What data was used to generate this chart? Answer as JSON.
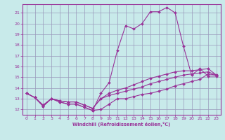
{
  "background_color": "#c8eaea",
  "line_color": "#993399",
  "grid_color": "#9999bb",
  "xlabel": "Windchill (Refroidissement éolien,°C)",
  "xlabel_color": "#993399",
  "xlim": [
    -0.5,
    23.5
  ],
  "ylim": [
    11.5,
    21.8
  ],
  "yticks": [
    12,
    13,
    14,
    15,
    16,
    17,
    18,
    19,
    20,
    21
  ],
  "xticks": [
    0,
    1,
    2,
    3,
    4,
    5,
    6,
    7,
    8,
    9,
    10,
    11,
    12,
    13,
    14,
    15,
    16,
    17,
    18,
    19,
    20,
    21,
    22,
    23
  ],
  "line1_y": [
    13.5,
    13.1,
    12.3,
    13.0,
    12.7,
    12.5,
    12.5,
    12.2,
    11.9,
    12.0,
    12.5,
    13.0,
    13.0,
    13.2,
    13.4,
    13.5,
    13.7,
    13.9,
    14.2,
    14.4,
    14.6,
    14.8,
    15.3,
    15.2
  ],
  "line2_y": [
    13.5,
    13.1,
    12.3,
    13.0,
    12.7,
    12.5,
    12.5,
    12.2,
    11.9,
    13.5,
    14.5,
    17.5,
    19.8,
    19.5,
    20.0,
    21.1,
    21.1,
    21.5,
    21.0,
    17.9,
    15.2,
    15.8,
    15.1,
    15.1
  ],
  "line3_y": [
    13.5,
    13.1,
    12.4,
    13.0,
    12.8,
    12.7,
    12.7,
    12.4,
    12.1,
    13.0,
    13.3,
    13.5,
    13.7,
    13.9,
    14.1,
    14.4,
    14.6,
    14.8,
    15.0,
    15.2,
    15.3,
    15.4,
    15.5,
    15.2
  ],
  "line4_y": [
    13.5,
    13.1,
    12.4,
    13.0,
    12.8,
    12.7,
    12.7,
    12.4,
    12.1,
    13.0,
    13.5,
    13.8,
    14.0,
    14.3,
    14.6,
    14.9,
    15.1,
    15.3,
    15.5,
    15.6,
    15.6,
    15.7,
    15.8,
    15.2
  ]
}
